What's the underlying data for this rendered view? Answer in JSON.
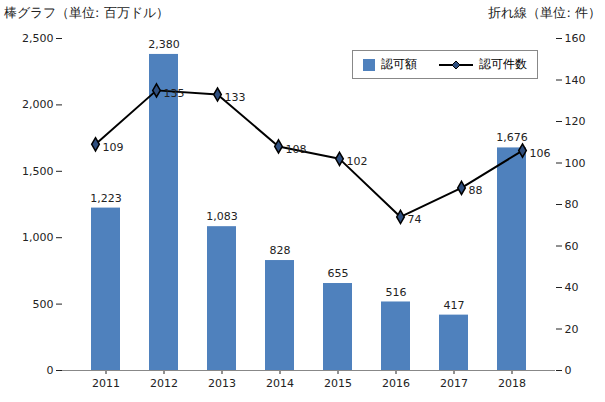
{
  "chart_data": {
    "type": "bar",
    "categories": [
      "2011",
      "2012",
      "2013",
      "2014",
      "2015",
      "2016",
      "2017",
      "2018"
    ],
    "series": [
      {
        "name": "認可額",
        "type": "bar",
        "color": "#4f81bd",
        "values": [
          1223,
          2380,
          1083,
          828,
          655,
          516,
          417,
          1676
        ],
        "value_labels": [
          "1,223",
          "2,380",
          "1,083",
          "828",
          "655",
          "516",
          "417",
          "1,676"
        ]
      },
      {
        "name": "認可件数",
        "type": "line",
        "axis": "y2",
        "color": "#000000",
        "marker": "diamond",
        "line_style": "solid",
        "values": [
          109,
          135,
          133,
          108,
          102,
          74,
          88,
          106
        ]
      }
    ],
    "ylabel": "棒グラフ（単位: 百万ドル）",
    "y2label": "折れ線（単位: 件）",
    "ylim": [
      0,
      2500
    ],
    "yticks": [
      0,
      500,
      {
        "value": 1000,
        "label": "1,000"
      },
      {
        "value": 1500,
        "label": "1,500"
      },
      {
        "value": 2000,
        "label": "2,000"
      },
      {
        "value": 2500,
        "label": "2,500"
      }
    ],
    "y2lim": [
      0,
      160
    ],
    "y2ticks": [
      0,
      20,
      40,
      60,
      80,
      100,
      120,
      140,
      160
    ],
    "data_labels": true,
    "legend": "top-right",
    "grid": false
  }
}
